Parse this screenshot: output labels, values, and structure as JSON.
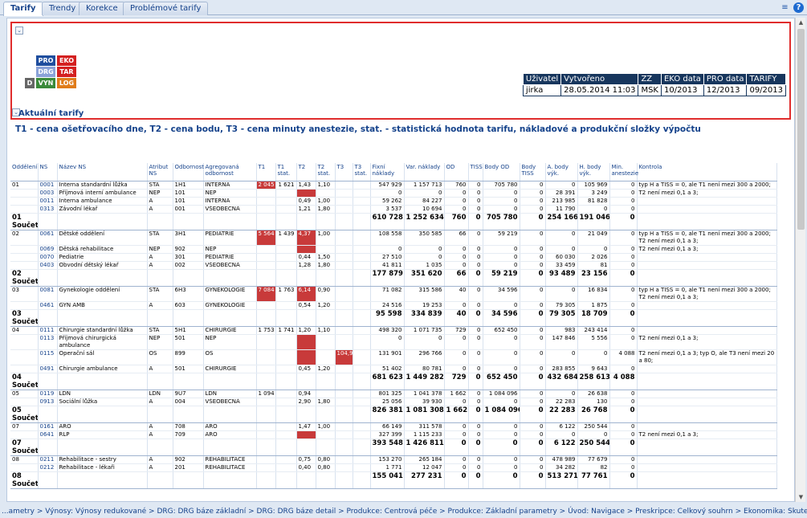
{
  "tabs": [
    "Tarify",
    "Trendy",
    "Korekce",
    "Problémové tarify"
  ],
  "toolbar": {
    "menu_icon": "≡",
    "help_icon": "?"
  },
  "legend": [
    [
      "PRO",
      "EKO"
    ],
    [
      "DRG",
      "TAR"
    ],
    [
      "D",
      "VYN",
      "LOG"
    ]
  ],
  "legend_colors": {
    "PRO": "#1f4e9e",
    "EKO": "#d42020",
    "DRG": "#8aa2d8",
    "TAR": "#d42020",
    "D": "#666666",
    "VYN": "#3a8a3a",
    "LOG": "#e07c1a"
  },
  "meta": {
    "headers": [
      "Uživatel",
      "Vytvořeno",
      "ZZ",
      "EKO data",
      "PRO data",
      "TARIFY"
    ],
    "values": [
      "jirka",
      "28.05.2014 11:03",
      "MSK",
      "10/2013",
      "12/2013",
      "09/2013"
    ]
  },
  "section_title": "Aktuální tarify",
  "subtitle": "T1 - cena ošetřovacího dne, T2 - cena bodu, T3 - cena minuty anestezie, stat. - statistická hodnota tarifu, nákladové a produkční složky výpočtu",
  "columns": [
    "Oddělení",
    "NS",
    "Název NS",
    "Atribut NS",
    "Odbornost",
    "Agregovaná odbornost",
    "T1",
    "T1 stat.",
    "T2",
    "T2 stat.",
    "T3",
    "T3 stat.",
    "Fixní náklady",
    "Var. náklady",
    "OD",
    "TISS",
    "Body OD",
    "Body TISS",
    "A. body výk.",
    "H. body výk.",
    "Min. anestezie",
    "Kontrola"
  ],
  "rows": [
    {
      "type": "row",
      "c": [
        "01",
        "0001",
        "Interna standardní lůžka",
        "STA",
        "1H1",
        "INTERNA",
        "2 045",
        "1 621",
        "1,43",
        "1,10",
        "",
        "",
        "547 929",
        "1 157 713",
        "760",
        "0",
        "705 780",
        "0",
        "0",
        "105 969",
        "0",
        "typ H a TISS = 0, ale T1 není mezi 300 a 2000;"
      ],
      "red": [
        6
      ]
    },
    {
      "type": "row",
      "c": [
        "",
        "0003",
        "Příjmová interní ambulance",
        "NEP",
        "101",
        "NEP",
        "",
        "",
        "",
        "",
        "",
        "",
        "0",
        "0",
        "0",
        "0",
        "0",
        "0",
        "28 391",
        "3 249",
        "0",
        "T2 není mezi 0,1 a 3;"
      ],
      "red": [
        8
      ]
    },
    {
      "type": "row",
      "c": [
        "",
        "0011",
        "Interna ambulance",
        "A",
        "101",
        "INTERNA",
        "",
        "",
        "0,49",
        "1,00",
        "",
        "",
        "59 262",
        "84 227",
        "0",
        "0",
        "0",
        "0",
        "213 985",
        "81 828",
        "0",
        ""
      ],
      "red": []
    },
    {
      "type": "row",
      "c": [
        "",
        "0313",
        "Závodní lékař",
        "A",
        "001",
        "VŠEOBECNÁ",
        "",
        "",
        "1,21",
        "1,80",
        "",
        "",
        "3 537",
        "10 694",
        "0",
        "0",
        "0",
        "0",
        "11 790",
        "0",
        "0",
        ""
      ],
      "red": []
    },
    {
      "type": "sum",
      "c": [
        "01 Součet",
        "",
        "",
        "",
        "",
        "",
        "",
        "",
        "",
        "",
        "",
        "",
        "610 728",
        "1 252 634",
        "760",
        "0",
        "705 780",
        "0",
        "254 166",
        "191 046",
        "0",
        ""
      ]
    },
    {
      "type": "row",
      "c": [
        "02",
        "0061",
        "Dětské oddělení",
        "STA",
        "3H1",
        "PEDIATRIE",
        "5 564",
        "1 439",
        "4,37",
        "1,00",
        "",
        "",
        "108 558",
        "350 585",
        "66",
        "0",
        "59 219",
        "0",
        "0",
        "21 049",
        "0",
        "typ H a TISS = 0, ale T1 není mezi 300 a 2000; T2 není mezi 0,1 a 3;"
      ],
      "red": [
        6,
        8
      ]
    },
    {
      "type": "row",
      "c": [
        "",
        "0069",
        "Dětská rehabilitace",
        "NEP",
        "902",
        "NEP",
        "",
        "",
        "",
        "",
        "",
        "",
        "0",
        "0",
        "0",
        "0",
        "0",
        "0",
        "0",
        "0",
        "0",
        "T2 není mezi 0,1 a 3;"
      ],
      "red": [
        8
      ]
    },
    {
      "type": "row",
      "c": [
        "",
        "0070",
        "Pediatrie",
        "A",
        "301",
        "PEDIATRIE",
        "",
        "",
        "0,44",
        "1,50",
        "",
        "",
        "27 510",
        "0",
        "0",
        "0",
        "0",
        "0",
        "60 030",
        "2 026",
        "0",
        ""
      ],
      "red": []
    },
    {
      "type": "row",
      "c": [
        "",
        "0403",
        "Obvodní dětský lékař",
        "A",
        "002",
        "VŠEOBECNÁ",
        "",
        "",
        "1,28",
        "1,80",
        "",
        "",
        "41 811",
        "1 035",
        "0",
        "0",
        "0",
        "0",
        "33 459",
        "81",
        "0",
        ""
      ],
      "red": []
    },
    {
      "type": "sum",
      "c": [
        "02 Součet",
        "",
        "",
        "",
        "",
        "",
        "",
        "",
        "",
        "",
        "",
        "",
        "177 879",
        "351 620",
        "66",
        "0",
        "59 219",
        "0",
        "93 489",
        "23 156",
        "0",
        ""
      ]
    },
    {
      "type": "row",
      "c": [
        "03",
        "0081",
        "Gynekologie oddělení",
        "STA",
        "6H3",
        "GYNEKOLOGIE",
        "7 084",
        "1 763",
        "6,14",
        "0,90",
        "",
        "",
        "71 082",
        "315 586",
        "40",
        "0",
        "34 596",
        "0",
        "0",
        "16 834",
        "0",
        "typ H a TISS = 0, ale T1 není mezi 300 a 2000; T2 není mezi 0,1 a 3;"
      ],
      "red": [
        6,
        8
      ]
    },
    {
      "type": "row",
      "c": [
        "",
        "0461",
        "GYN AMB",
        "A",
        "603",
        "GYNEKOLOGIE",
        "",
        "",
        "0,54",
        "1,20",
        "",
        "",
        "24 516",
        "19 253",
        "0",
        "0",
        "0",
        "0",
        "79 305",
        "1 875",
        "0",
        ""
      ],
      "red": []
    },
    {
      "type": "sum",
      "c": [
        "03 Součet",
        "",
        "",
        "",
        "",
        "",
        "",
        "",
        "",
        "",
        "",
        "",
        "95 598",
        "334 839",
        "40",
        "0",
        "34 596",
        "0",
        "79 305",
        "18 709",
        "0",
        ""
      ]
    },
    {
      "type": "row",
      "c": [
        "04",
        "0111",
        "Chirurgie standardní lůžka",
        "STA",
        "5H1",
        "CHIRURGIE",
        "1 753",
        "1 741",
        "1,20",
        "1,10",
        "",
        "",
        "498 320",
        "1 071 735",
        "729",
        "0",
        "652 450",
        "0",
        "983",
        "243 414",
        "0",
        ""
      ],
      "red": []
    },
    {
      "type": "row",
      "c": [
        "",
        "0113",
        "Příjmová chirurgická ambulance",
        "NEP",
        "501",
        "NEP",
        "",
        "",
        "",
        "",
        "",
        "",
        "0",
        "0",
        "0",
        "0",
        "0",
        "0",
        "147 846",
        "5 556",
        "0",
        "T2 není mezi 0,1 a 3;"
      ],
      "red": [
        8
      ]
    },
    {
      "type": "row",
      "c": [
        "",
        "0115",
        "Operační sál",
        "OS",
        "899",
        "OS",
        "",
        "",
        "",
        "",
        "104,9",
        "",
        "131 901",
        "296 766",
        "0",
        "0",
        "0",
        "0",
        "0",
        "0",
        "4 088",
        "T2 není mezi 0,1 a 3; typ O, ale T3 není mezi 20 a 80;"
      ],
      "red": [
        8,
        10
      ]
    },
    {
      "type": "row",
      "c": [
        "",
        "0491",
        "Chirurgie ambulance",
        "A",
        "501",
        "CHIRURGIE",
        "",
        "",
        "0,45",
        "1,20",
        "",
        "",
        "51 402",
        "80 781",
        "0",
        "0",
        "0",
        "0",
        "283 855",
        "9 643",
        "0",
        ""
      ],
      "red": []
    },
    {
      "type": "sum",
      "c": [
        "04 Součet",
        "",
        "",
        "",
        "",
        "",
        "",
        "",
        "",
        "",
        "",
        "",
        "681 623",
        "1 449 282",
        "729",
        "0",
        "652 450",
        "0",
        "432 684",
        "258 613",
        "4 088",
        ""
      ]
    },
    {
      "type": "row",
      "c": [
        "05",
        "0119",
        "LDN",
        "LDN",
        "9U7",
        "LDN",
        "1 094",
        "",
        "0,94",
        "",
        "",
        "",
        "801 325",
        "1 041 378",
        "1 662",
        "0",
        "1 084 096",
        "0",
        "0",
        "26 638",
        "0",
        ""
      ],
      "red": []
    },
    {
      "type": "row",
      "c": [
        "",
        "0913",
        "Sociální lůžka",
        "A",
        "004",
        "VŠEOBECNÁ",
        "",
        "",
        "2,90",
        "1,80",
        "",
        "",
        "25 056",
        "39 930",
        "0",
        "0",
        "0",
        "0",
        "22 283",
        "130",
        "0",
        ""
      ],
      "red": []
    },
    {
      "type": "sum",
      "c": [
        "05 Součet",
        "",
        "",
        "",
        "",
        "",
        "",
        "",
        "",
        "",
        "",
        "",
        "826 381",
        "1 081 308",
        "1 662",
        "0",
        "1 084 096",
        "0",
        "22 283",
        "26 768",
        "0",
        ""
      ]
    },
    {
      "type": "row",
      "c": [
        "07",
        "0161",
        "ARO",
        "A",
        "708",
        "ARO",
        "",
        "",
        "1,47",
        "1,00",
        "",
        "",
        "66 149",
        "311 578",
        "0",
        "0",
        "0",
        "0",
        "6 122",
        "250 544",
        "0",
        ""
      ],
      "red": []
    },
    {
      "type": "row",
      "c": [
        "",
        "0641",
        "RLP",
        "A",
        "709",
        "ARO",
        "",
        "",
        "",
        "",
        "",
        "",
        "327 399",
        "1 115 233",
        "0",
        "0",
        "0",
        "0",
        "0",
        "0",
        "0",
        "T2 není mezi 0,1 a 3;"
      ],
      "red": [
        8
      ]
    },
    {
      "type": "sum",
      "c": [
        "07 Součet",
        "",
        "",
        "",
        "",
        "",
        "",
        "",
        "",
        "",
        "",
        "",
        "393 548",
        "1 426 811",
        "0",
        "0",
        "0",
        "0",
        "6 122",
        "250 544",
        "0",
        ""
      ]
    },
    {
      "type": "row",
      "c": [
        "08",
        "0211",
        "Rehabilitace - sestry",
        "A",
        "902",
        "REHABILITACE",
        "",
        "",
        "0,75",
        "0,80",
        "",
        "",
        "153 270",
        "265 184",
        "0",
        "0",
        "0",
        "0",
        "478 989",
        "77 679",
        "0",
        ""
      ],
      "red": []
    },
    {
      "type": "row",
      "c": [
        "",
        "0212",
        "Rehabilitace - lékaři",
        "A",
        "201",
        "REHABILITACE",
        "",
        "",
        "0,40",
        "0,80",
        "",
        "",
        "1 771",
        "12 047",
        "0",
        "0",
        "0",
        "0",
        "34 282",
        "82",
        "0",
        ""
      ],
      "red": []
    },
    {
      "type": "sum",
      "c": [
        "08 Součet",
        "",
        "",
        "",
        "",
        "",
        "",
        "",
        "",
        "",
        "",
        "",
        "155 041",
        "277 231",
        "0",
        "0",
        "0",
        "0",
        "513 271",
        "77 761",
        "0",
        ""
      ]
    }
  ],
  "breadcrumb": "...ametry > Výnosy: Výnosy redukované > DRG: DRG báze základní > DRG: DRG báze detail > Produkce: Centrová péče > Produkce: Základní parametry > Úvod: Navigace > Preskripce: Celkový souhrn > Ekonomika: Skutečnost a plán > Tarify: Tarify"
}
